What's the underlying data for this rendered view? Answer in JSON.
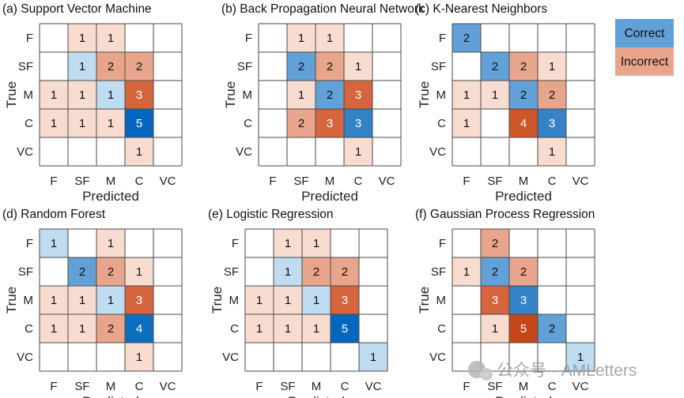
{
  "legend": {
    "correct_label": "Correct",
    "incorrect_label": "Incorrect"
  },
  "colors": {
    "correct": [
      "#ffffff",
      "#c0dcf1",
      "#62a1d8",
      "#3483c8",
      "#0b6ebf",
      "#0467bf"
    ],
    "incorrect": [
      "#ffffff",
      "#f8dcd0",
      "#e9a58b",
      "#d5653c",
      "#cf5628",
      "#c5461a"
    ],
    "grid": "#4a4a4a"
  },
  "watermark": {
    "text": "公众号 · AMLetters"
  },
  "chart_data": [
    {
      "type": "heatmap",
      "title": "(a) Support Vector Machine",
      "xlabel": "Predicted",
      "ylabel": "True",
      "categories": [
        "F",
        "SF",
        "M",
        "C",
        "VC"
      ],
      "matrix": [
        [
          0,
          1,
          1,
          0,
          0
        ],
        [
          0,
          1,
          2,
          2,
          0
        ],
        [
          1,
          1,
          1,
          3,
          0
        ],
        [
          1,
          1,
          1,
          5,
          0
        ],
        [
          0,
          0,
          0,
          1,
          0
        ]
      ]
    },
    {
      "type": "heatmap",
      "title": "(b) Back Propagation Neural Network",
      "xlabel": "Predicted",
      "ylabel": "True",
      "categories": [
        "F",
        "SF",
        "M",
        "C",
        "VC"
      ],
      "matrix": [
        [
          0,
          1,
          1,
          0,
          0
        ],
        [
          0,
          2,
          2,
          1,
          0
        ],
        [
          0,
          1,
          2,
          3,
          0
        ],
        [
          0,
          2,
          3,
          3,
          0
        ],
        [
          0,
          0,
          0,
          1,
          0
        ]
      ]
    },
    {
      "type": "heatmap",
      "title": "(c) K-Nearest Neighbors",
      "xlabel": "Predicted",
      "ylabel": "True",
      "categories": [
        "F",
        "SF",
        "M",
        "C",
        "VC"
      ],
      "matrix": [
        [
          2,
          0,
          0,
          0,
          0
        ],
        [
          0,
          2,
          2,
          1,
          0
        ],
        [
          1,
          1,
          2,
          2,
          0
        ],
        [
          1,
          0,
          4,
          3,
          0
        ],
        [
          0,
          0,
          0,
          1,
          0
        ]
      ]
    },
    {
      "type": "heatmap",
      "title": "(d) Random Forest",
      "xlabel": "Predicted",
      "ylabel": "True",
      "categories": [
        "F",
        "SF",
        "M",
        "C",
        "VC"
      ],
      "matrix": [
        [
          1,
          0,
          1,
          0,
          0
        ],
        [
          0,
          2,
          2,
          1,
          0
        ],
        [
          1,
          1,
          1,
          3,
          0
        ],
        [
          1,
          1,
          2,
          4,
          0
        ],
        [
          0,
          0,
          0,
          1,
          0
        ]
      ]
    },
    {
      "type": "heatmap",
      "title": "(e) Logistic Regression",
      "xlabel": "Predicted",
      "ylabel": "True",
      "categories": [
        "F",
        "SF",
        "M",
        "C",
        "VC"
      ],
      "matrix": [
        [
          0,
          1,
          1,
          0,
          0
        ],
        [
          0,
          1,
          2,
          2,
          0
        ],
        [
          1,
          1,
          1,
          3,
          0
        ],
        [
          1,
          1,
          1,
          5,
          0
        ],
        [
          0,
          0,
          0,
          0,
          1
        ]
      ]
    },
    {
      "type": "heatmap",
      "title": "(f) Gaussian Process Regression",
      "xlabel": "Predicted",
      "ylabel": "True",
      "categories": [
        "F",
        "SF",
        "M",
        "C",
        "VC"
      ],
      "matrix": [
        [
          0,
          2,
          0,
          0,
          0
        ],
        [
          1,
          2,
          2,
          0,
          0
        ],
        [
          0,
          3,
          3,
          0,
          0
        ],
        [
          0,
          1,
          5,
          2,
          0
        ],
        [
          0,
          0,
          0,
          0,
          1
        ]
      ]
    }
  ]
}
